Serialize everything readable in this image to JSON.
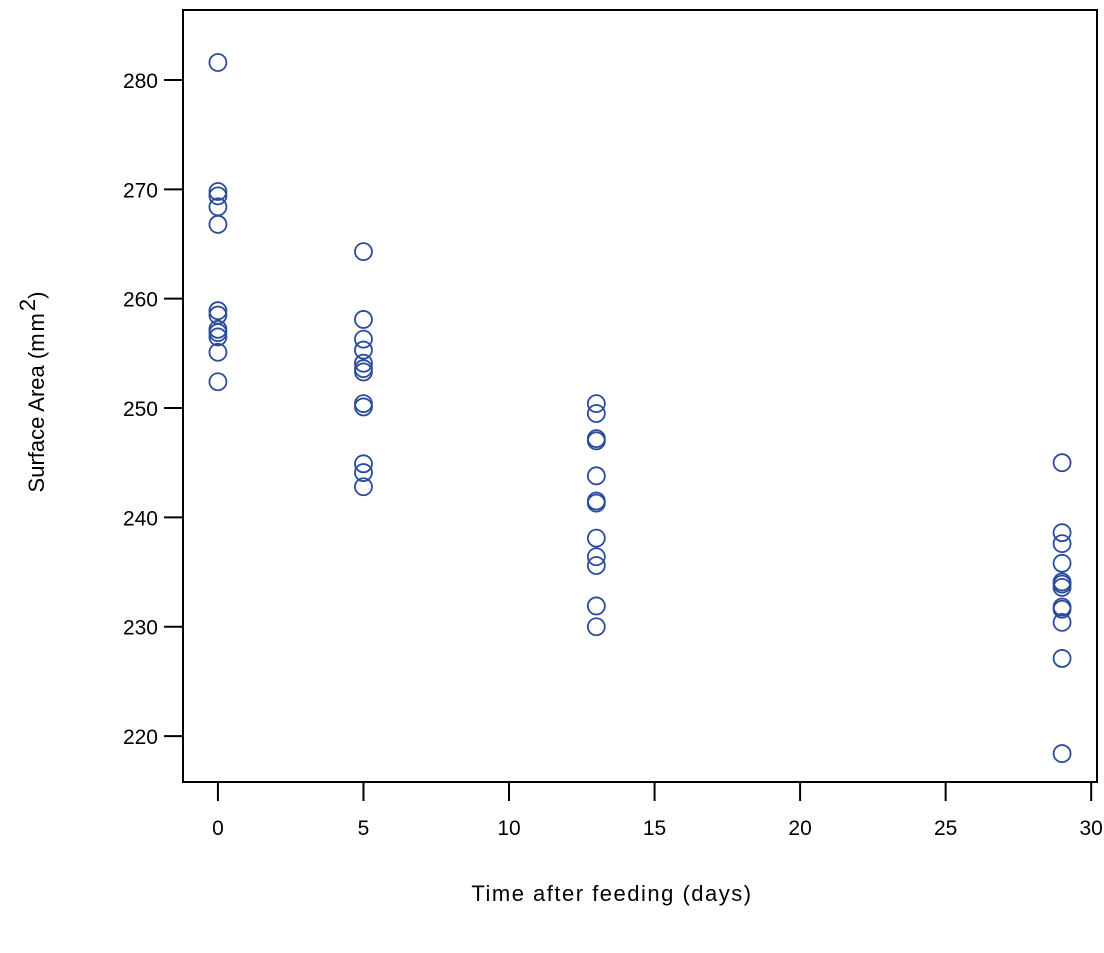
{
  "chart_data": {
    "type": "scatter",
    "title": "",
    "xlabel": "Time after feeding (days)",
    "ylabel": {
      "prefix": "Surface Area (",
      "unit": "mm",
      "superscript": "2",
      "suffix": ")"
    },
    "xlim": [
      -1.2,
      30.2
    ],
    "ylim": [
      215.8,
      286.4
    ],
    "xticks": [
      0,
      5,
      10,
      15,
      20,
      25,
      30
    ],
    "yticks": [
      220,
      230,
      240,
      250,
      260,
      270,
      280
    ],
    "grid": false,
    "marker_color": "#2b4b9b",
    "series": [
      {
        "points": [
          [
            0,
            281.6
          ],
          [
            0,
            269.8
          ],
          [
            0,
            269.4
          ],
          [
            0,
            268.4
          ],
          [
            0,
            266.8
          ],
          [
            0,
            258.9
          ],
          [
            0,
            258.5
          ],
          [
            0,
            257.2
          ],
          [
            0,
            256.9
          ],
          [
            0,
            256.5
          ],
          [
            0,
            255.1
          ],
          [
            0,
            252.4
          ],
          [
            5,
            264.3
          ],
          [
            5,
            258.1
          ],
          [
            5,
            256.3
          ],
          [
            5,
            255.3
          ],
          [
            5,
            254.1
          ],
          [
            5,
            253.6
          ],
          [
            5,
            253.3
          ],
          [
            5,
            250.4
          ],
          [
            5,
            250.1
          ],
          [
            5,
            244.9
          ],
          [
            5,
            244.1
          ],
          [
            5,
            242.8
          ],
          [
            13,
            250.4
          ],
          [
            13,
            249.5
          ],
          [
            13,
            247.2
          ],
          [
            13,
            247.0
          ],
          [
            13,
            243.8
          ],
          [
            13,
            241.5
          ],
          [
            13,
            241.3
          ],
          [
            13,
            238.1
          ],
          [
            13,
            236.4
          ],
          [
            13,
            235.6
          ],
          [
            13,
            231.9
          ],
          [
            13,
            230.0
          ],
          [
            29,
            245.0
          ],
          [
            29,
            238.6
          ],
          [
            29,
            237.6
          ],
          [
            29,
            235.8
          ],
          [
            29,
            234.1
          ],
          [
            29,
            233.9
          ],
          [
            29,
            233.6
          ],
          [
            29,
            231.8
          ],
          [
            29,
            231.6
          ],
          [
            29,
            230.4
          ],
          [
            29,
            227.1
          ],
          [
            29,
            218.4
          ]
        ]
      }
    ]
  }
}
